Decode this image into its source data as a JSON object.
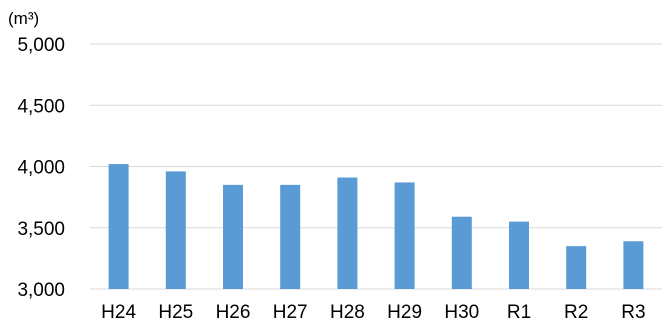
{
  "chart_data": {
    "type": "bar",
    "title": "",
    "xlabel": "",
    "ylabel": "(m³)",
    "unit": "(m³)",
    "categories": [
      "H24",
      "H25",
      "H26",
      "H27",
      "H28",
      "H29",
      "H30",
      "R1",
      "R2",
      "R3"
    ],
    "values": [
      4020,
      3960,
      3850,
      3850,
      3910,
      3870,
      3590,
      3550,
      3350,
      3390
    ],
    "ylim": [
      3000,
      5000
    ],
    "yticks": [
      3000,
      3500,
      4000,
      4500,
      5000
    ],
    "ytick_labels": [
      "3,000",
      "3,500",
      "4,000",
      "4,500",
      "5,000"
    ],
    "grid": true,
    "legend": "none",
    "bar_color": "#5b9bd5",
    "grid_color": "#d9d9d9"
  }
}
